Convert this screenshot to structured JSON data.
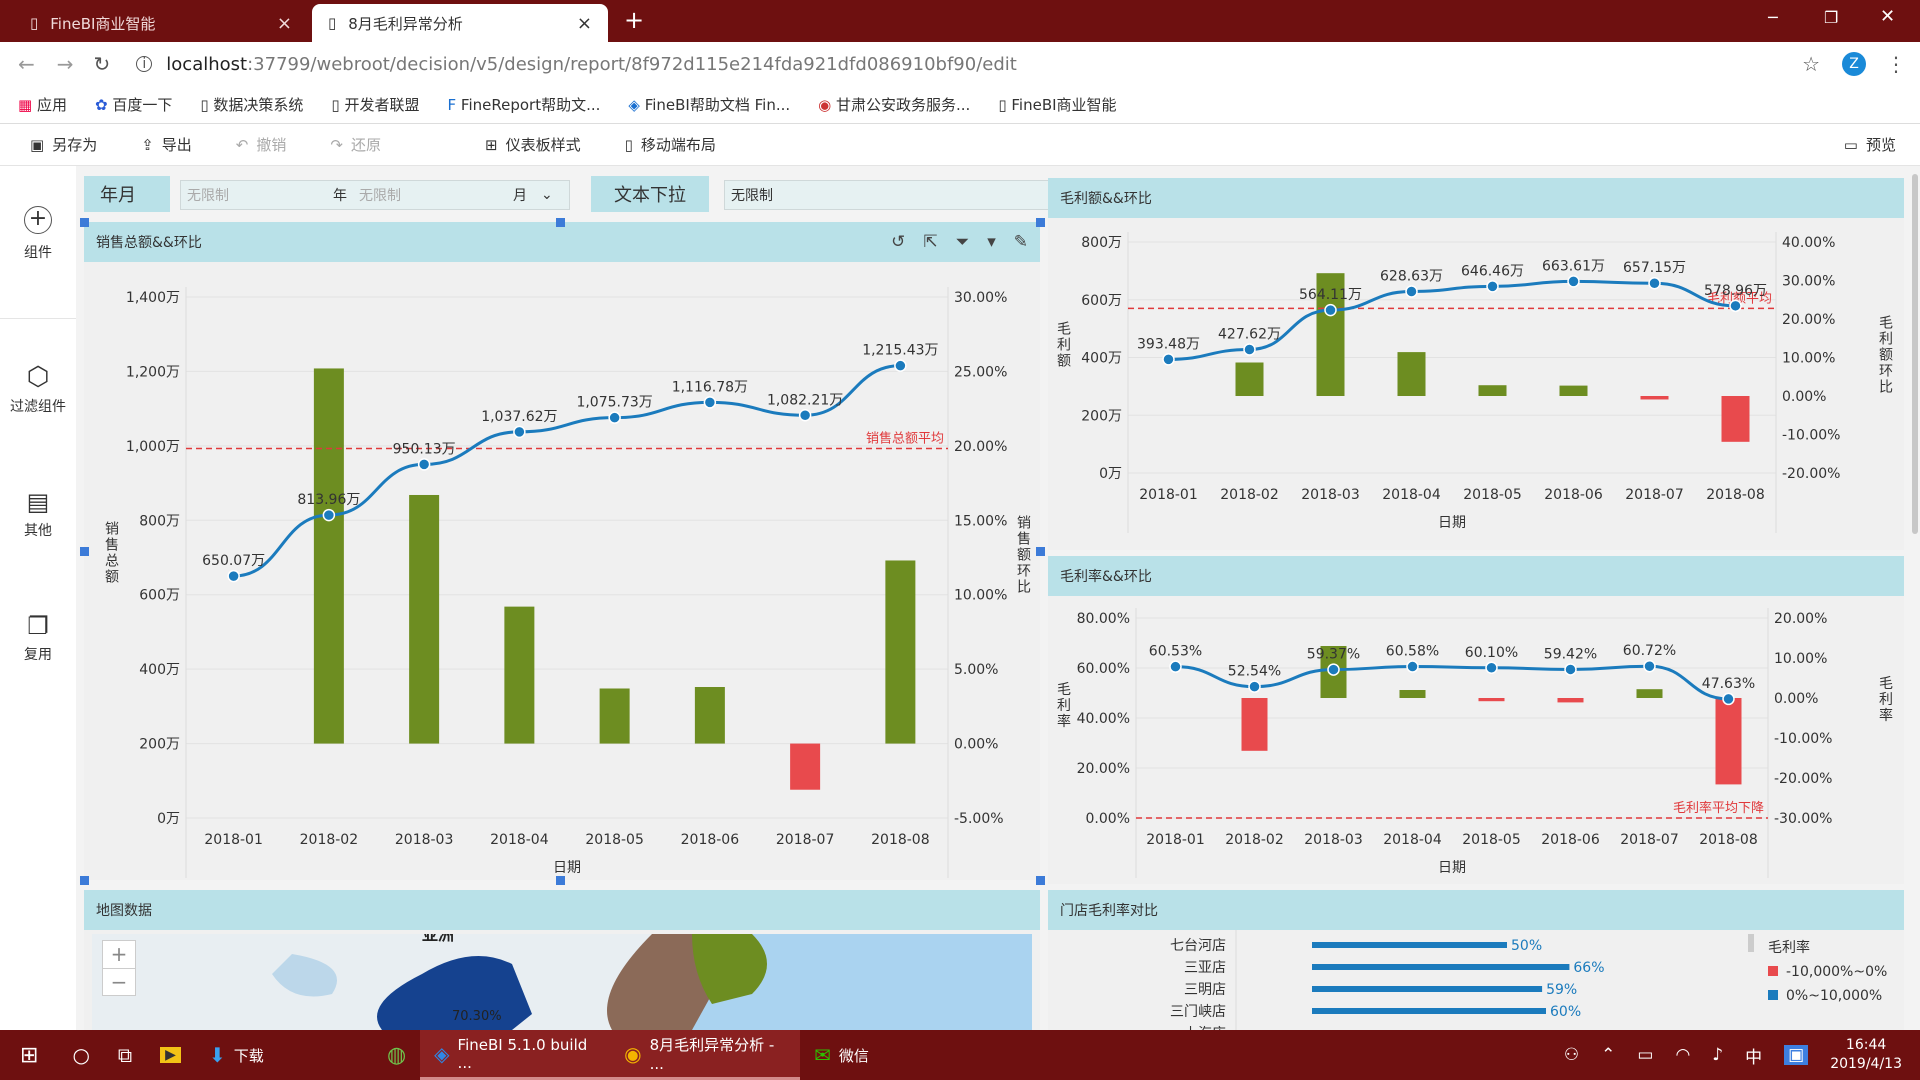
{
  "browser": {
    "tabs": [
      {
        "title": "FineBI商业智能",
        "close": "×"
      },
      {
        "title": "8月毛利异常分析",
        "close": "×"
      }
    ],
    "new_tab": "+",
    "url_host": "localhost",
    "url_rest": ":37799/webroot/decision/v5/design/report/8f972d115e214fda921dfd086910bf90/edit",
    "profile": "Z",
    "window_controls": [
      "─",
      "❐",
      "✕"
    ],
    "bookmarks": [
      "应用",
      "百度一下",
      "数据决策系统",
      "开发者联盟",
      "FineReport帮助文...",
      "FineBI帮助文档 Fin...",
      "甘肃公安政务服务...",
      "FineBI商业智能"
    ]
  },
  "toolbar": {
    "save_as": "另存为",
    "export": "导出",
    "undo": "撤销",
    "redo": "还原",
    "dashboard_style": "仪表板样式",
    "mobile_layout": "移动端布局",
    "preview": "预览"
  },
  "sidebar": [
    {
      "label": "组件",
      "icon": "plus-circle-icon"
    },
    {
      "label": "过滤组件",
      "icon": "cube-icon"
    },
    {
      "label": "其他",
      "icon": "note-icon"
    },
    {
      "label": "复用",
      "icon": "copy-icon"
    }
  ],
  "filters": {
    "year_month_label": "年月",
    "year_placeholder": "无限制",
    "year_unit": "年",
    "month_placeholder": "无限制",
    "month_unit": "月",
    "text_dropdown_label": "文本下拉",
    "text_dropdown_value": "无限制"
  },
  "widgets": {
    "sales": "销售总额&&环比",
    "gross_profit": "毛利额&&环比",
    "margin": "毛利率&&环比",
    "map": "地图数据",
    "store": "门店毛利率对比"
  },
  "accent": "#1b7bbd",
  "bar_positive": "#6d8d21",
  "bar_negative": "#e84a4d",
  "avg_line": "#e0393b",
  "chart_data": [
    {
      "type": "bar",
      "title": "销售总额&&环比",
      "xlabel": "日期",
      "ylabel": "销售总额",
      "y2label": "销售额环比",
      "categories": [
        "2018-01",
        "2018-02",
        "2018-03",
        "2018-04",
        "2018-05",
        "2018-06",
        "2018-07",
        "2018-08"
      ],
      "ylim": [
        0,
        1400
      ],
      "y_ticks": [
        "0万",
        "200万",
        "400万",
        "600万",
        "800万",
        "1,000万",
        "1,200万",
        "1,400万"
      ],
      "y2lim": [
        -5,
        30
      ],
      "y2_ticks": [
        "-5.00%",
        "0.00%",
        "5.00%",
        "10.00%",
        "15.00%",
        "20.00%",
        "25.00%",
        "30.00%"
      ],
      "series": [
        {
          "name": "销售总额",
          "type": "line",
          "values": [
            650.07,
            813.96,
            950.13,
            1037.62,
            1075.73,
            1116.78,
            1082.21,
            1215.43
          ],
          "labels": [
            "650.07万",
            "813.96万",
            "950.13万",
            "1,037.62万",
            "1,075.73万",
            "1,116.78万",
            "1,082.21万",
            "1,215.43万"
          ]
        },
        {
          "name": "销售额环比",
          "type": "bar",
          "values": [
            null,
            25.2,
            16.7,
            9.2,
            3.7,
            3.8,
            -3.1,
            12.3
          ]
        }
      ],
      "reference_line": {
        "label": "销售总额平均",
        "value": 993
      }
    },
    {
      "type": "bar",
      "title": "毛利额&&环比",
      "xlabel": "日期",
      "ylabel": "毛利额",
      "y2label": "毛利额环比",
      "categories": [
        "2018-01",
        "2018-02",
        "2018-03",
        "2018-04",
        "2018-05",
        "2018-06",
        "2018-07",
        "2018-08"
      ],
      "ylim": [
        0,
        800
      ],
      "y_ticks": [
        "0万",
        "200万",
        "400万",
        "600万",
        "800万"
      ],
      "y2lim": [
        -20,
        40
      ],
      "y2_ticks": [
        "-20.00%",
        "-10.00%",
        "0.00%",
        "10.00%",
        "20.00%",
        "30.00%",
        "40.00%"
      ],
      "series": [
        {
          "name": "毛利额",
          "type": "line",
          "values": [
            393.48,
            427.62,
            564.11,
            628.63,
            646.46,
            663.61,
            657.15,
            578.96
          ],
          "labels": [
            "393.48万",
            "427.62万",
            "564.11万",
            "628.63万",
            "646.46万",
            "663.61万",
            "657.15万",
            "578.96万"
          ]
        },
        {
          "name": "毛利额环比",
          "type": "bar",
          "values": [
            null,
            8.7,
            31.9,
            11.4,
            2.8,
            2.7,
            -0.9,
            -11.9
          ]
        }
      ],
      "reference_line": {
        "label": "毛利额平均",
        "value": 570
      }
    },
    {
      "type": "bar",
      "title": "毛利率&&环比",
      "xlabel": "日期",
      "ylabel": "毛利率",
      "y2label": "毛利率",
      "categories": [
        "2018-01",
        "2018-02",
        "2018-03",
        "2018-04",
        "2018-05",
        "2018-06",
        "2018-07",
        "2018-08"
      ],
      "ylim": [
        0,
        80
      ],
      "y_ticks": [
        "0.00%",
        "20.00%",
        "40.00%",
        "60.00%",
        "80.00%"
      ],
      "y2lim": [
        -30,
        20
      ],
      "y2_ticks": [
        "-30.00%",
        "-20.00%",
        "-10.00%",
        "0.00%",
        "10.00%",
        "20.00%"
      ],
      "series": [
        {
          "name": "毛利率",
          "type": "line",
          "values": [
            60.53,
            52.54,
            59.37,
            60.58,
            60.1,
            59.42,
            60.72,
            47.63
          ],
          "labels": [
            "60.53%",
            "52.54%",
            "59.37%",
            "60.58%",
            "60.10%",
            "59.42%",
            "60.72%",
            "47.63%"
          ]
        },
        {
          "name": "毛利率环比",
          "type": "bar",
          "values": [
            null,
            -13.2,
            13.0,
            2.0,
            -0.8,
            -1.1,
            2.2,
            -21.6
          ]
        }
      ],
      "reference_line": {
        "label": "毛利率平均下降",
        "value": 0
      }
    },
    {
      "type": "bar",
      "title": "门店毛利率对比",
      "categories": [
        "七台河店",
        "三亚店",
        "三明店",
        "三门峡店",
        "上海店"
      ],
      "values": [
        50,
        66,
        59,
        60,
        null
      ],
      "labels": [
        "50%",
        "66%",
        "59%",
        "60%",
        ""
      ],
      "legend": {
        "title": "毛利率",
        "items": [
          "-10,000%~0%",
          "0%~10,000%"
        ],
        "colors": [
          "#e84a4d",
          "#1b7bbd"
        ]
      }
    }
  ],
  "map": {
    "zoom_in": "+",
    "zoom_out": "−",
    "label_pct": "70.30%",
    "label_top": "亚洲"
  },
  "taskbar": {
    "apps": [
      "下载",
      "FineBI 5.1.0 build ...",
      "8月毛利异常分析 - ...",
      "微信"
    ],
    "time": "16:44",
    "date": "2019/4/13",
    "ime": "中"
  }
}
